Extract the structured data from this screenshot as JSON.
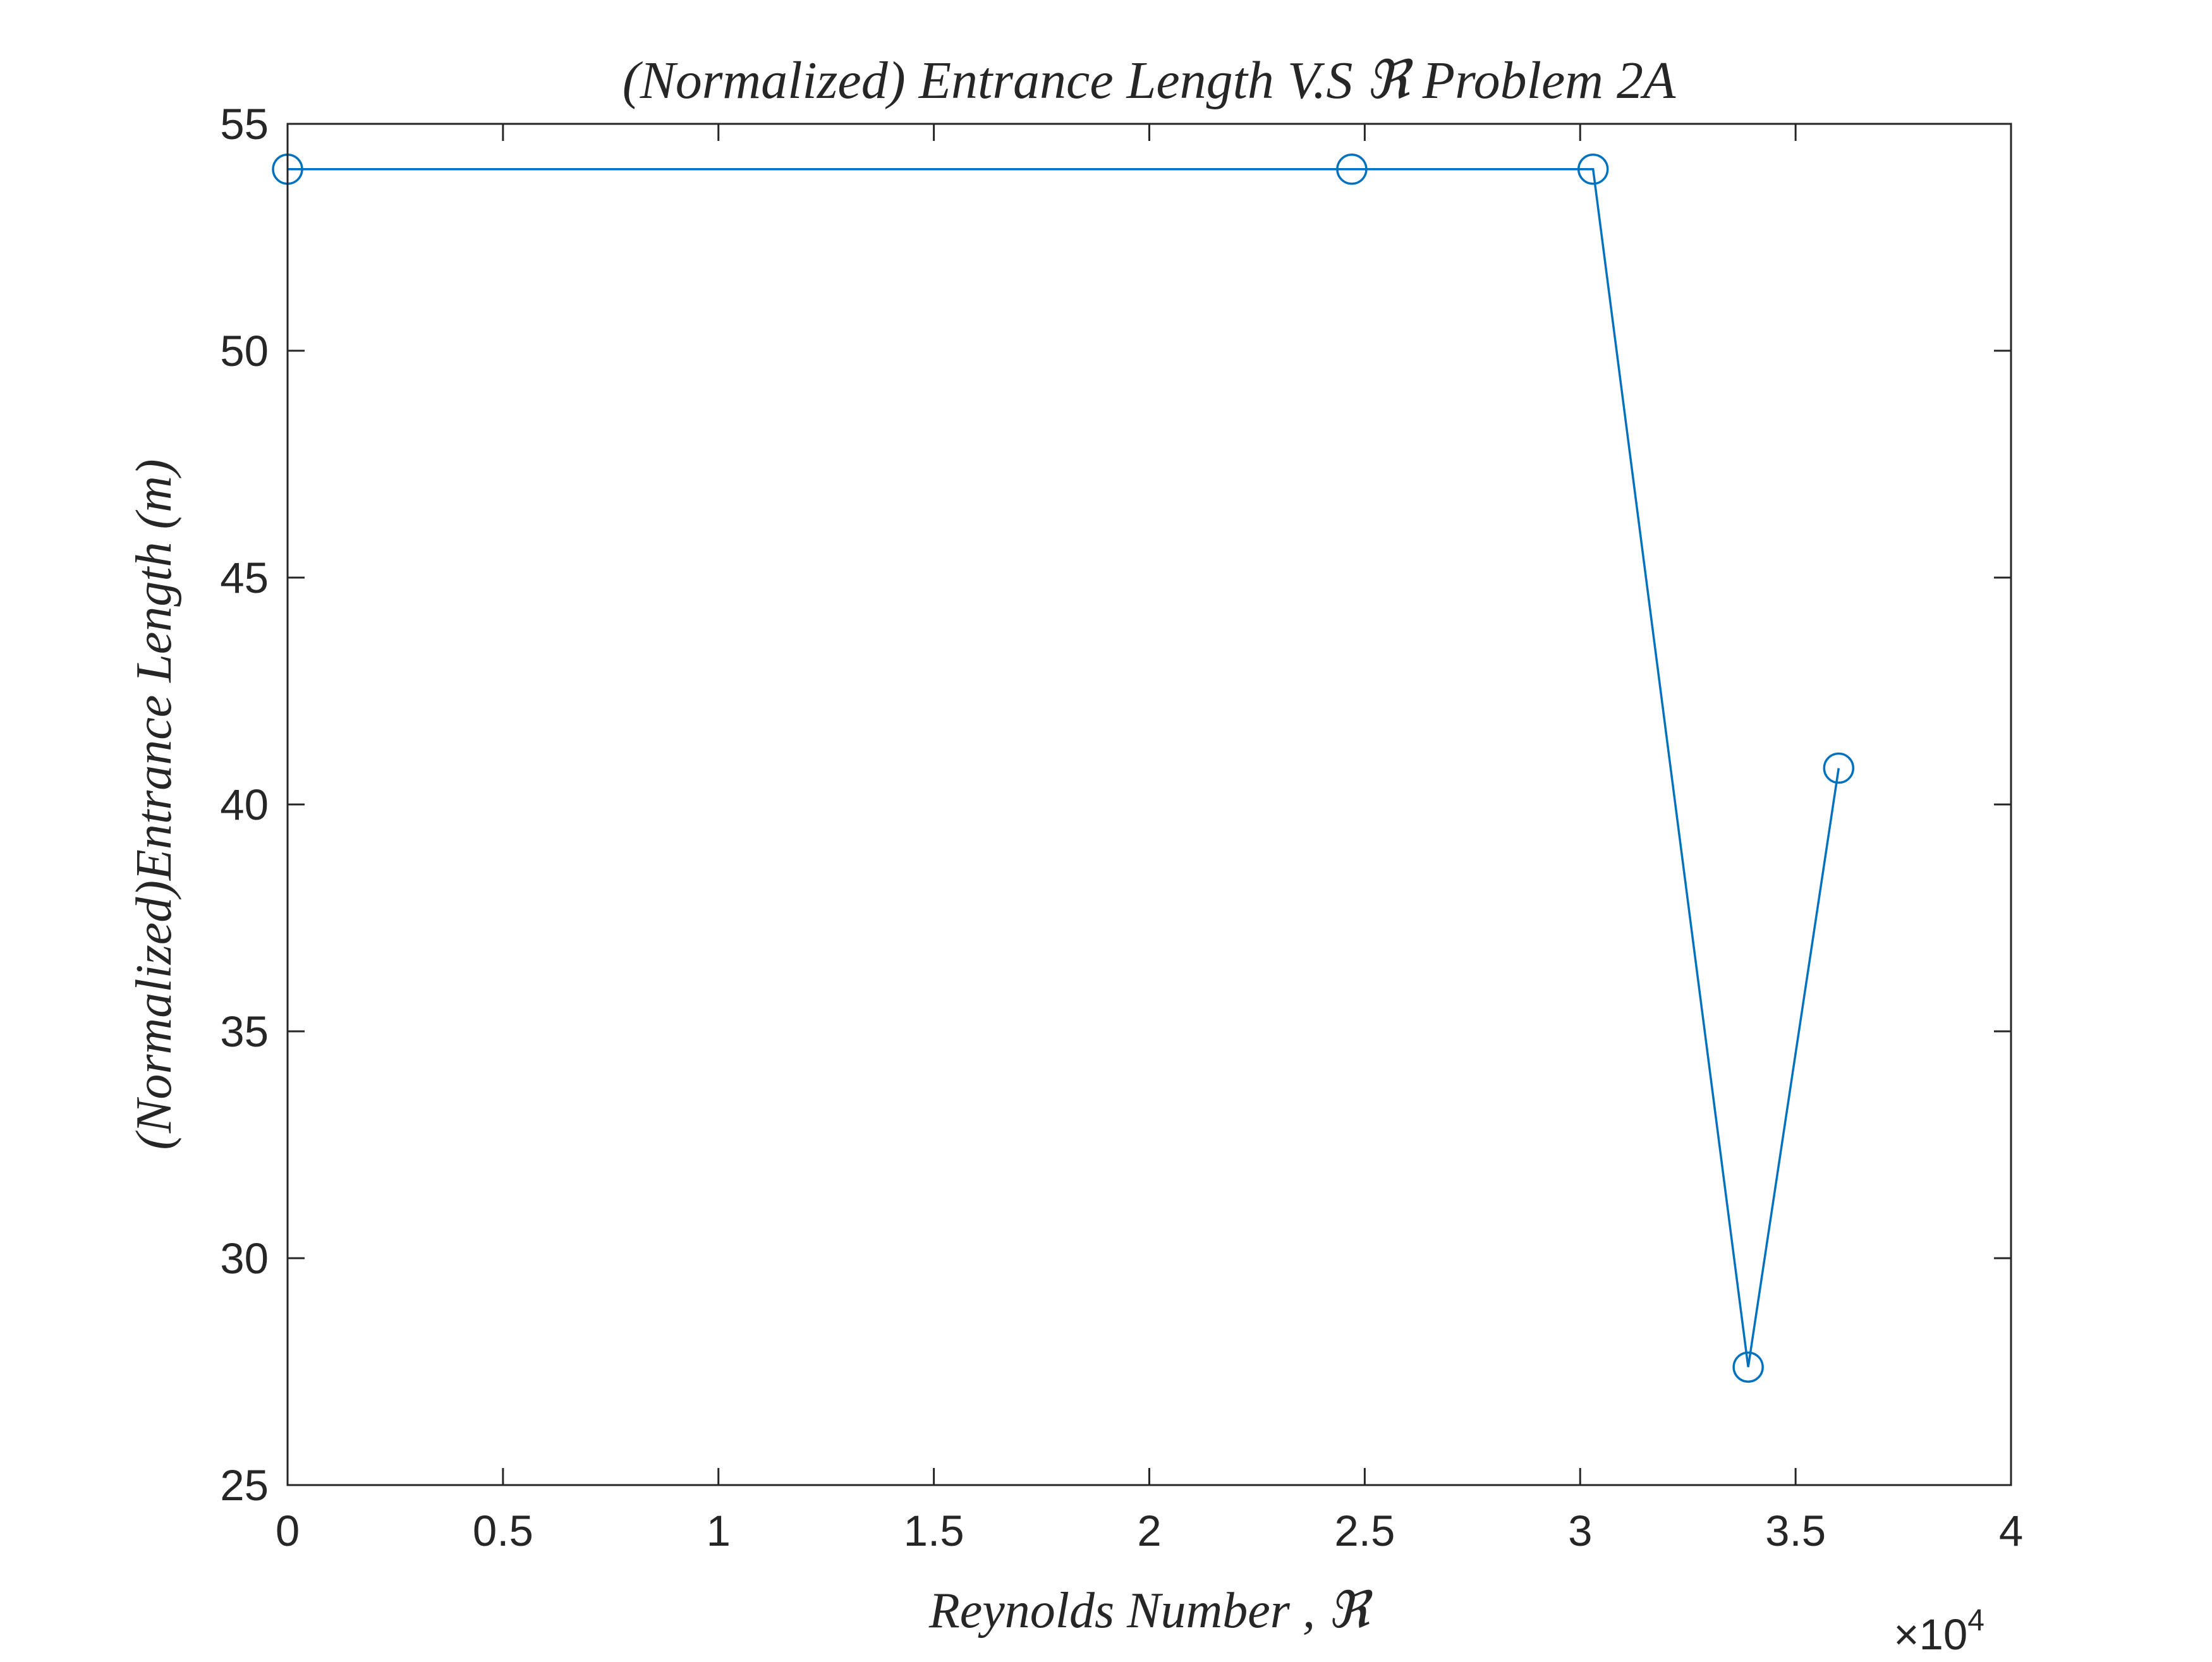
{
  "chart_data": {
    "type": "line",
    "title": "(Normalized) Entrance Length V.S ℜ Problem 2A",
    "xlabel": "Reynolds Number , ℜ",
    "ylabel": "(Normalized)Entrance Length (m)",
    "x_multiplier_label": "×10",
    "x_multiplier_exponent": "4",
    "xlim": [
      0,
      40000
    ],
    "ylim": [
      25,
      55
    ],
    "x_ticks": [
      0,
      5000,
      10000,
      15000,
      20000,
      25000,
      30000,
      35000,
      40000
    ],
    "x_tick_labels": [
      "0",
      "0.5",
      "1",
      "1.5",
      "2",
      "2.5",
      "3",
      "3.5",
      "4"
    ],
    "y_ticks": [
      25,
      30,
      35,
      40,
      45,
      50,
      55
    ],
    "y_tick_labels": [
      "25",
      "30",
      "35",
      "40",
      "45",
      "50",
      "55"
    ],
    "grid": false,
    "series": [
      {
        "color": "#0072BD",
        "marker": "circle",
        "x": [
          0,
          24700,
          30300,
          33900,
          36000
        ],
        "y": [
          54,
          54,
          54,
          27.6,
          40.8
        ]
      }
    ]
  }
}
